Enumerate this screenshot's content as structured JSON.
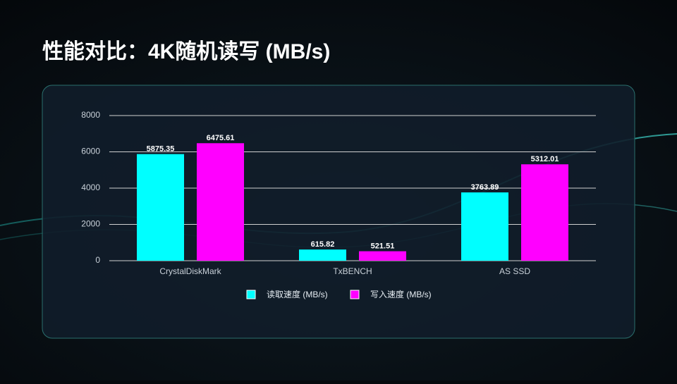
{
  "chart_data": {
    "type": "bar",
    "title": "性能对比：4K随机读写 (MB/s)",
    "categories": [
      "CrystalDiskMark",
      "TxBENCH",
      "AS SSD"
    ],
    "series": [
      {
        "name": "读取速度 (MB/s)",
        "color": "#00ffff",
        "values": [
          5875.35,
          615.82,
          3763.89
        ]
      },
      {
        "name": "写入速度 (MB/s)",
        "color": "#ff00ff",
        "values": [
          6475.61,
          521.51,
          5312.01
        ]
      }
    ],
    "ylim": [
      0,
      8000
    ],
    "yticks": [
      0,
      2000,
      4000,
      6000,
      8000
    ],
    "grid": true,
    "legend": "bottom"
  }
}
